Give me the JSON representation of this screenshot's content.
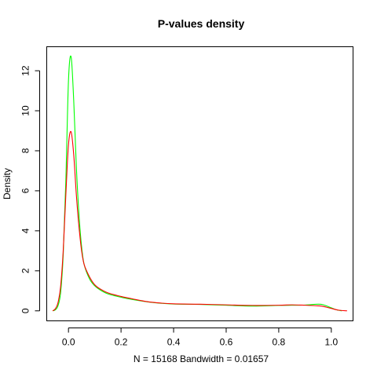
{
  "chart_data": {
    "type": "line",
    "title": "P-values density",
    "xlabel": "N = 15168   Bandwidth = 0.01657",
    "ylabel": "Density",
    "xlim": [
      -0.0827,
      1.0827
    ],
    "ylim": [
      -0.5,
      13.2
    ],
    "x_ticks": [
      0.0,
      0.2,
      0.4,
      0.6,
      0.8,
      1.0
    ],
    "x_tick_labels": [
      "0.0",
      "0.2",
      "0.4",
      "0.6",
      "0.8",
      "1.0"
    ],
    "y_ticks": [
      0,
      2,
      4,
      6,
      8,
      10,
      12
    ],
    "y_tick_labels": [
      "0",
      "2",
      "4",
      "6",
      "8",
      "10",
      "12"
    ],
    "grid": false,
    "series": [
      {
        "color": "#00ff00",
        "points": [
          [
            -0.06,
            0.0
          ],
          [
            -0.05,
            0.05
          ],
          [
            -0.04,
            0.25
          ],
          [
            -0.03,
            0.9
          ],
          [
            -0.02,
            2.8
          ],
          [
            -0.01,
            6.5
          ],
          [
            0.0,
            11.5
          ],
          [
            0.01,
            12.7
          ],
          [
            0.02,
            10.5
          ],
          [
            0.03,
            7.2
          ],
          [
            0.04,
            4.8
          ],
          [
            0.05,
            3.2
          ],
          [
            0.06,
            2.3
          ],
          [
            0.08,
            1.6
          ],
          [
            0.1,
            1.25
          ],
          [
            0.12,
            1.05
          ],
          [
            0.15,
            0.85
          ],
          [
            0.2,
            0.68
          ],
          [
            0.25,
            0.55
          ],
          [
            0.3,
            0.45
          ],
          [
            0.35,
            0.38
          ],
          [
            0.4,
            0.34
          ],
          [
            0.5,
            0.32
          ],
          [
            0.6,
            0.28
          ],
          [
            0.7,
            0.24
          ],
          [
            0.8,
            0.27
          ],
          [
            0.85,
            0.28
          ],
          [
            0.9,
            0.29
          ],
          [
            0.95,
            0.33
          ],
          [
            0.97,
            0.3
          ],
          [
            1.0,
            0.15
          ],
          [
            1.02,
            0.05
          ],
          [
            1.04,
            0.0
          ]
        ]
      },
      {
        "color": "#ff0000",
        "points": [
          [
            -0.06,
            0.0
          ],
          [
            -0.05,
            0.1
          ],
          [
            -0.04,
            0.4
          ],
          [
            -0.03,
            1.2
          ],
          [
            -0.02,
            3.0
          ],
          [
            -0.01,
            5.8
          ],
          [
            0.0,
            8.3
          ],
          [
            0.01,
            8.95
          ],
          [
            0.02,
            7.8
          ],
          [
            0.03,
            5.8
          ],
          [
            0.04,
            4.2
          ],
          [
            0.05,
            3.0
          ],
          [
            0.06,
            2.3
          ],
          [
            0.08,
            1.7
          ],
          [
            0.1,
            1.3
          ],
          [
            0.12,
            1.1
          ],
          [
            0.15,
            0.9
          ],
          [
            0.2,
            0.72
          ],
          [
            0.25,
            0.58
          ],
          [
            0.3,
            0.46
          ],
          [
            0.35,
            0.39
          ],
          [
            0.4,
            0.35
          ],
          [
            0.5,
            0.33
          ],
          [
            0.6,
            0.3
          ],
          [
            0.7,
            0.27
          ],
          [
            0.8,
            0.28
          ],
          [
            0.85,
            0.3
          ],
          [
            0.9,
            0.28
          ],
          [
            0.95,
            0.25
          ],
          [
            0.97,
            0.22
          ],
          [
            1.0,
            0.12
          ],
          [
            1.03,
            0.03
          ],
          [
            1.06,
            0.0
          ]
        ]
      }
    ]
  }
}
